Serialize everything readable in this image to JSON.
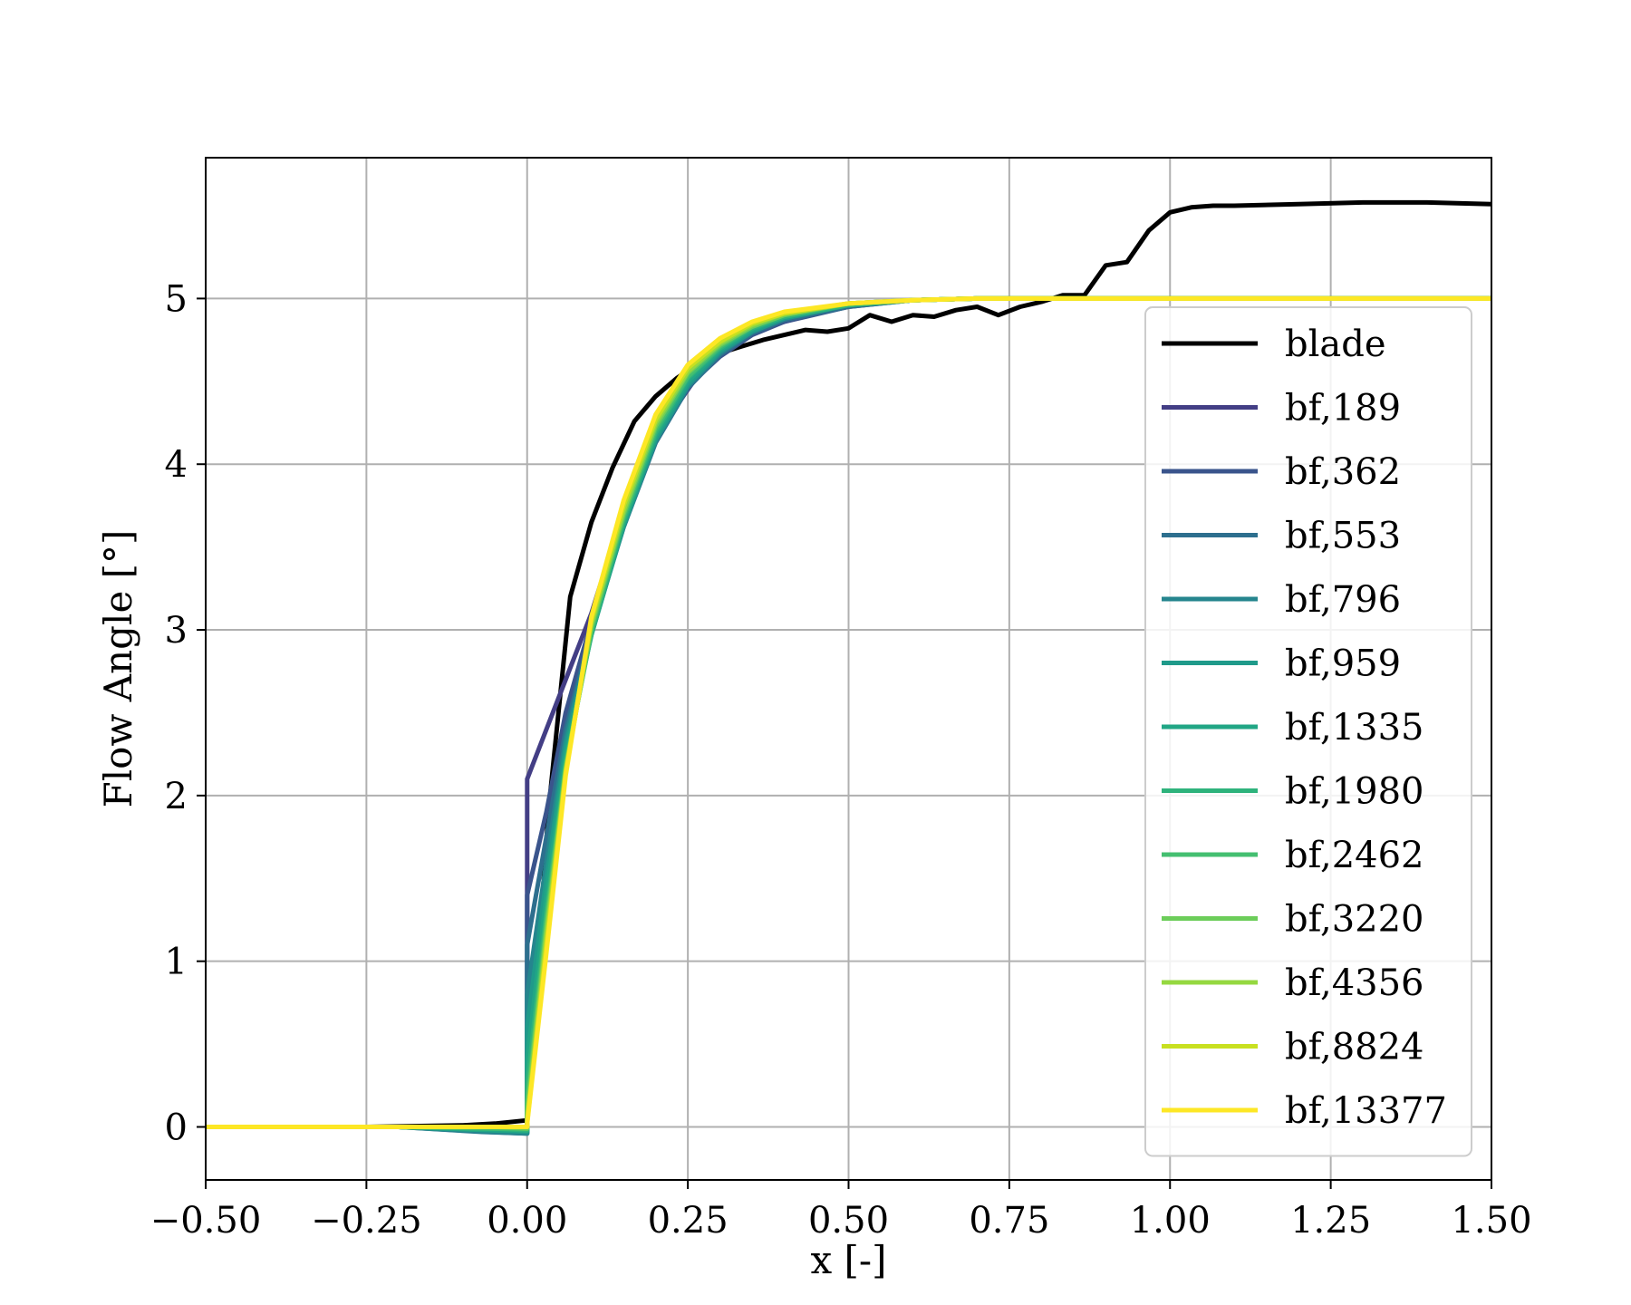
{
  "chart_data": {
    "type": "line",
    "title": "",
    "xlabel": "x [-]",
    "ylabel": "Flow Angle [°]",
    "xlim": [
      -0.5,
      1.5
    ],
    "ylim": [
      -0.32,
      5.85
    ],
    "xticks": [
      -0.5,
      -0.25,
      0.0,
      0.25,
      0.5,
      0.75,
      1.0,
      1.25,
      1.5
    ],
    "xtick_labels": [
      "−0.50",
      "−0.25",
      "0.00",
      "0.25",
      "0.50",
      "0.75",
      "1.00",
      "1.25",
      "1.50"
    ],
    "yticks": [
      0,
      1,
      2,
      3,
      4,
      5
    ],
    "ytick_labels": [
      "0",
      "1",
      "2",
      "3",
      "4",
      "5"
    ],
    "grid": true,
    "legend": {
      "position": "right"
    },
    "series": [
      {
        "name": "blade",
        "color": "#000000",
        "x": [
          -0.5,
          -0.25,
          -0.1,
          -0.05,
          0.0,
          0.033,
          0.067,
          0.1,
          0.133,
          0.167,
          0.2,
          0.233,
          0.267,
          0.3,
          0.333,
          0.367,
          0.4,
          0.433,
          0.467,
          0.5,
          0.533,
          0.567,
          0.6,
          0.633,
          0.667,
          0.7,
          0.733,
          0.767,
          0.8,
          0.833,
          0.867,
          0.9,
          0.933,
          0.967,
          1.0,
          1.033,
          1.067,
          1.1,
          1.2,
          1.3,
          1.4,
          1.5
        ],
        "y": [
          0.0,
          0.0,
          0.01,
          0.02,
          0.04,
          1.9,
          3.2,
          3.65,
          3.98,
          4.26,
          4.41,
          4.52,
          4.61,
          4.67,
          4.71,
          4.75,
          4.78,
          4.81,
          4.8,
          4.82,
          4.9,
          4.86,
          4.9,
          4.89,
          4.93,
          4.95,
          4.9,
          4.95,
          4.98,
          5.02,
          5.02,
          5.2,
          5.22,
          5.41,
          5.52,
          5.55,
          5.56,
          5.56,
          5.57,
          5.58,
          5.58,
          5.57
        ]
      },
      {
        "name": "bf,189",
        "color": "#433e85",
        "x": [
          -0.5,
          -0.2,
          0.0,
          0.0,
          0.05,
          0.1,
          0.15,
          0.2,
          0.25,
          0.3,
          0.35,
          0.4,
          0.5,
          0.6,
          0.7,
          0.8,
          1.0,
          1.5
        ],
        "y": [
          0.0,
          0.0,
          0.0,
          2.1,
          2.6,
          3.1,
          3.72,
          4.17,
          4.45,
          4.72,
          4.8,
          4.86,
          4.96,
          4.99,
          5.0,
          5.0,
          5.0,
          5.0
        ]
      },
      {
        "name": "bf,362",
        "color": "#3a548c",
        "x": [
          -0.5,
          -0.2,
          -0.05,
          0.0,
          0.0,
          0.03,
          0.06,
          0.1,
          0.15,
          0.2,
          0.25,
          0.3,
          0.35,
          0.4,
          0.5,
          0.6,
          0.7,
          1.0,
          1.5
        ],
        "y": [
          0.0,
          0.0,
          -0.02,
          -0.03,
          1.4,
          1.9,
          2.5,
          3.05,
          3.65,
          4.15,
          4.47,
          4.65,
          4.78,
          4.86,
          4.95,
          4.99,
          5.0,
          5.0,
          5.0
        ]
      },
      {
        "name": "bf,553",
        "color": "#2d6f8e",
        "x": [
          -0.5,
          -0.2,
          -0.07,
          0.0,
          0.0,
          0.03,
          0.06,
          0.1,
          0.15,
          0.2,
          0.25,
          0.3,
          0.35,
          0.4,
          0.5,
          0.6,
          0.7,
          1.0,
          1.5
        ],
        "y": [
          0.0,
          0.0,
          -0.03,
          -0.04,
          1.1,
          1.75,
          2.4,
          3.0,
          3.62,
          4.13,
          4.46,
          4.66,
          4.79,
          4.87,
          4.95,
          4.99,
          5.0,
          5.0,
          5.0
        ]
      },
      {
        "name": "bf,796",
        "color": "#25858e",
        "x": [
          -0.5,
          -0.2,
          -0.06,
          0.0,
          0.0,
          0.03,
          0.06,
          0.1,
          0.15,
          0.2,
          0.25,
          0.3,
          0.35,
          0.4,
          0.5,
          0.6,
          0.7,
          1.0,
          1.5
        ],
        "y": [
          0.0,
          0.0,
          -0.03,
          -0.04,
          0.8,
          1.6,
          2.35,
          2.98,
          3.62,
          4.14,
          4.47,
          4.67,
          4.8,
          4.88,
          4.96,
          4.99,
          5.0,
          5.0,
          5.0
        ]
      },
      {
        "name": "bf,959",
        "color": "#1f9a8a",
        "x": [
          -0.5,
          -0.2,
          -0.05,
          0.0,
          0.0,
          0.03,
          0.06,
          0.1,
          0.15,
          0.2,
          0.25,
          0.3,
          0.35,
          0.4,
          0.5,
          0.6,
          0.7,
          1.0,
          1.5
        ],
        "y": [
          0.0,
          0.0,
          -0.02,
          -0.03,
          0.6,
          1.5,
          2.3,
          2.97,
          3.63,
          4.15,
          4.48,
          4.68,
          4.8,
          4.88,
          4.96,
          4.99,
          5.0,
          5.0,
          5.0
        ]
      },
      {
        "name": "bf,1335",
        "color": "#21a685",
        "x": [
          -0.5,
          -0.2,
          -0.05,
          0.0,
          0.0,
          0.03,
          0.06,
          0.1,
          0.15,
          0.2,
          0.25,
          0.3,
          0.35,
          0.4,
          0.5,
          0.6,
          0.7,
          1.0,
          1.5
        ],
        "y": [
          0.0,
          0.0,
          -0.02,
          -0.02,
          0.4,
          1.4,
          2.25,
          2.97,
          3.64,
          4.17,
          4.5,
          4.69,
          4.81,
          4.89,
          4.96,
          4.99,
          5.0,
          5.0,
          5.0
        ]
      },
      {
        "name": "bf,1980",
        "color": "#2eb37c",
        "x": [
          -0.5,
          -0.2,
          -0.05,
          0.0,
          0.0,
          0.03,
          0.06,
          0.1,
          0.15,
          0.2,
          0.25,
          0.3,
          0.35,
          0.4,
          0.5,
          0.6,
          0.7,
          1.0,
          1.5
        ],
        "y": [
          0.0,
          0.0,
          -0.01,
          -0.02,
          0.25,
          1.3,
          2.2,
          2.98,
          3.66,
          4.19,
          4.52,
          4.7,
          4.82,
          4.89,
          4.96,
          4.99,
          5.0,
          5.0,
          5.0
        ]
      },
      {
        "name": "bf,2462",
        "color": "#44bf70",
        "x": [
          -0.5,
          -0.2,
          -0.05,
          0.0,
          0.0,
          0.03,
          0.06,
          0.1,
          0.15,
          0.2,
          0.25,
          0.3,
          0.35,
          0.4,
          0.5,
          0.6,
          0.7,
          1.0,
          1.5
        ],
        "y": [
          0.0,
          0.0,
          -0.01,
          -0.01,
          0.15,
          1.25,
          2.18,
          3.0,
          3.68,
          4.21,
          4.53,
          4.71,
          4.83,
          4.9,
          4.97,
          4.99,
          5.0,
          5.0,
          5.0
        ]
      },
      {
        "name": "bf,3220",
        "color": "#6ccd5a",
        "x": [
          -0.5,
          -0.2,
          -0.05,
          0.0,
          0.0,
          0.03,
          0.06,
          0.1,
          0.15,
          0.2,
          0.25,
          0.3,
          0.35,
          0.4,
          0.5,
          0.6,
          0.7,
          1.0,
          1.5
        ],
        "y": [
          0.0,
          0.0,
          0.0,
          -0.01,
          0.1,
          1.2,
          2.16,
          3.02,
          3.7,
          4.23,
          4.55,
          4.72,
          4.83,
          4.9,
          4.97,
          4.99,
          5.0,
          5.0,
          5.0
        ]
      },
      {
        "name": "bf,4356",
        "color": "#95d840",
        "x": [
          -0.5,
          -0.2,
          -0.05,
          0.0,
          0.0,
          0.03,
          0.06,
          0.1,
          0.15,
          0.2,
          0.25,
          0.3,
          0.35,
          0.4,
          0.5,
          0.6,
          0.7,
          1.0,
          1.5
        ],
        "y": [
          0.0,
          0.0,
          0.0,
          0.0,
          0.05,
          1.15,
          2.15,
          3.04,
          3.72,
          4.25,
          4.56,
          4.73,
          4.84,
          4.91,
          4.97,
          4.99,
          5.0,
          5.0,
          5.0
        ]
      },
      {
        "name": "bf,8824",
        "color": "#c8e020",
        "x": [
          -0.5,
          -0.2,
          0.0,
          0.0,
          0.03,
          0.06,
          0.1,
          0.15,
          0.2,
          0.25,
          0.3,
          0.35,
          0.4,
          0.5,
          0.6,
          0.7,
          1.0,
          1.5
        ],
        "y": [
          0.0,
          0.0,
          0.0,
          0.03,
          1.1,
          2.14,
          3.06,
          3.75,
          4.27,
          4.58,
          4.74,
          4.85,
          4.91,
          4.97,
          4.99,
          5.0,
          5.0,
          5.0
        ]
      },
      {
        "name": "bf,13377",
        "color": "#fde725",
        "x": [
          -0.5,
          -0.2,
          0.0,
          0.0,
          0.03,
          0.06,
          0.1,
          0.15,
          0.2,
          0.25,
          0.3,
          0.35,
          0.4,
          0.5,
          0.6,
          0.7,
          1.0,
          1.5
        ],
        "y": [
          0.0,
          0.0,
          0.0,
          0.02,
          1.05,
          2.12,
          3.08,
          3.78,
          4.3,
          4.6,
          4.76,
          4.86,
          4.92,
          4.97,
          4.99,
          5.0,
          5.0,
          5.0
        ]
      }
    ]
  }
}
